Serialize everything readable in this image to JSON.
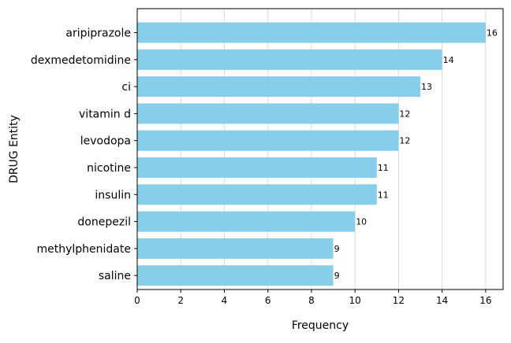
{
  "chart_data": {
    "type": "bar",
    "orientation": "horizontal",
    "categories": [
      "aripiprazole",
      "dexmedetomidine",
      "ci",
      "vitamin d",
      "levodopa",
      "nicotine",
      "insulin",
      "donepezil",
      "methylphenidate",
      "saline"
    ],
    "values": [
      16,
      14,
      13,
      12,
      12,
      11,
      11,
      10,
      9,
      9
    ],
    "data_labels": [
      "16",
      "14",
      "13",
      "12",
      "12",
      "11",
      "11",
      "10",
      "9",
      "9"
    ],
    "xlabel": "Frequency",
    "ylabel": "DRUG Entity",
    "xlim": [
      0,
      16.8
    ],
    "xticks": [
      0,
      2,
      4,
      6,
      8,
      10,
      12,
      14,
      16
    ],
    "xtick_labels": [
      "0",
      "2",
      "4",
      "6",
      "8",
      "10",
      "12",
      "14",
      "16"
    ],
    "grid": "vertical-x",
    "bar_color": "#87ceeb",
    "grid_color": "#d3d3d3"
  }
}
